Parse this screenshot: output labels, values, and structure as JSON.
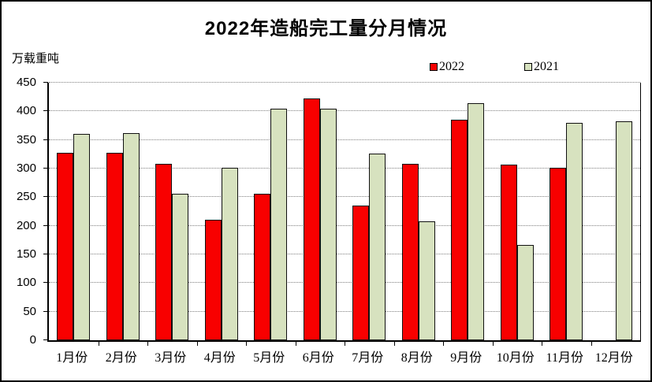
{
  "chart_data": {
    "type": "bar",
    "title": "2022年造船完工量分月情况",
    "ylabel": "万载重吨",
    "xlabel": "",
    "categories": [
      "1月份",
      "2月份",
      "3月份",
      "4月份",
      "5月份",
      "6月份",
      "7月份",
      "8月份",
      "9月份",
      "10月份",
      "11月份",
      "12月份"
    ],
    "series": [
      {
        "name": "2022",
        "color": "#F80000",
        "values": [
          327,
          327,
          308,
          210,
          256,
          422,
          235,
          308,
          386,
          307,
          302,
          null
        ]
      },
      {
        "name": "2021",
        "color": "#D7E2BF",
        "values": [
          361,
          362,
          256,
          301,
          405,
          405,
          326,
          208,
          414,
          166,
          380,
          382
        ]
      }
    ],
    "ylim": [
      0,
      450
    ],
    "ytick_interval": 50,
    "ytick_labels": [
      "0",
      "50",
      "100",
      "150",
      "200",
      "250",
      "300",
      "350",
      "400",
      "450"
    ],
    "grid": true,
    "gridline_style": "dotted",
    "legend_position": "top-right",
    "bar_border_color": "#000000"
  }
}
